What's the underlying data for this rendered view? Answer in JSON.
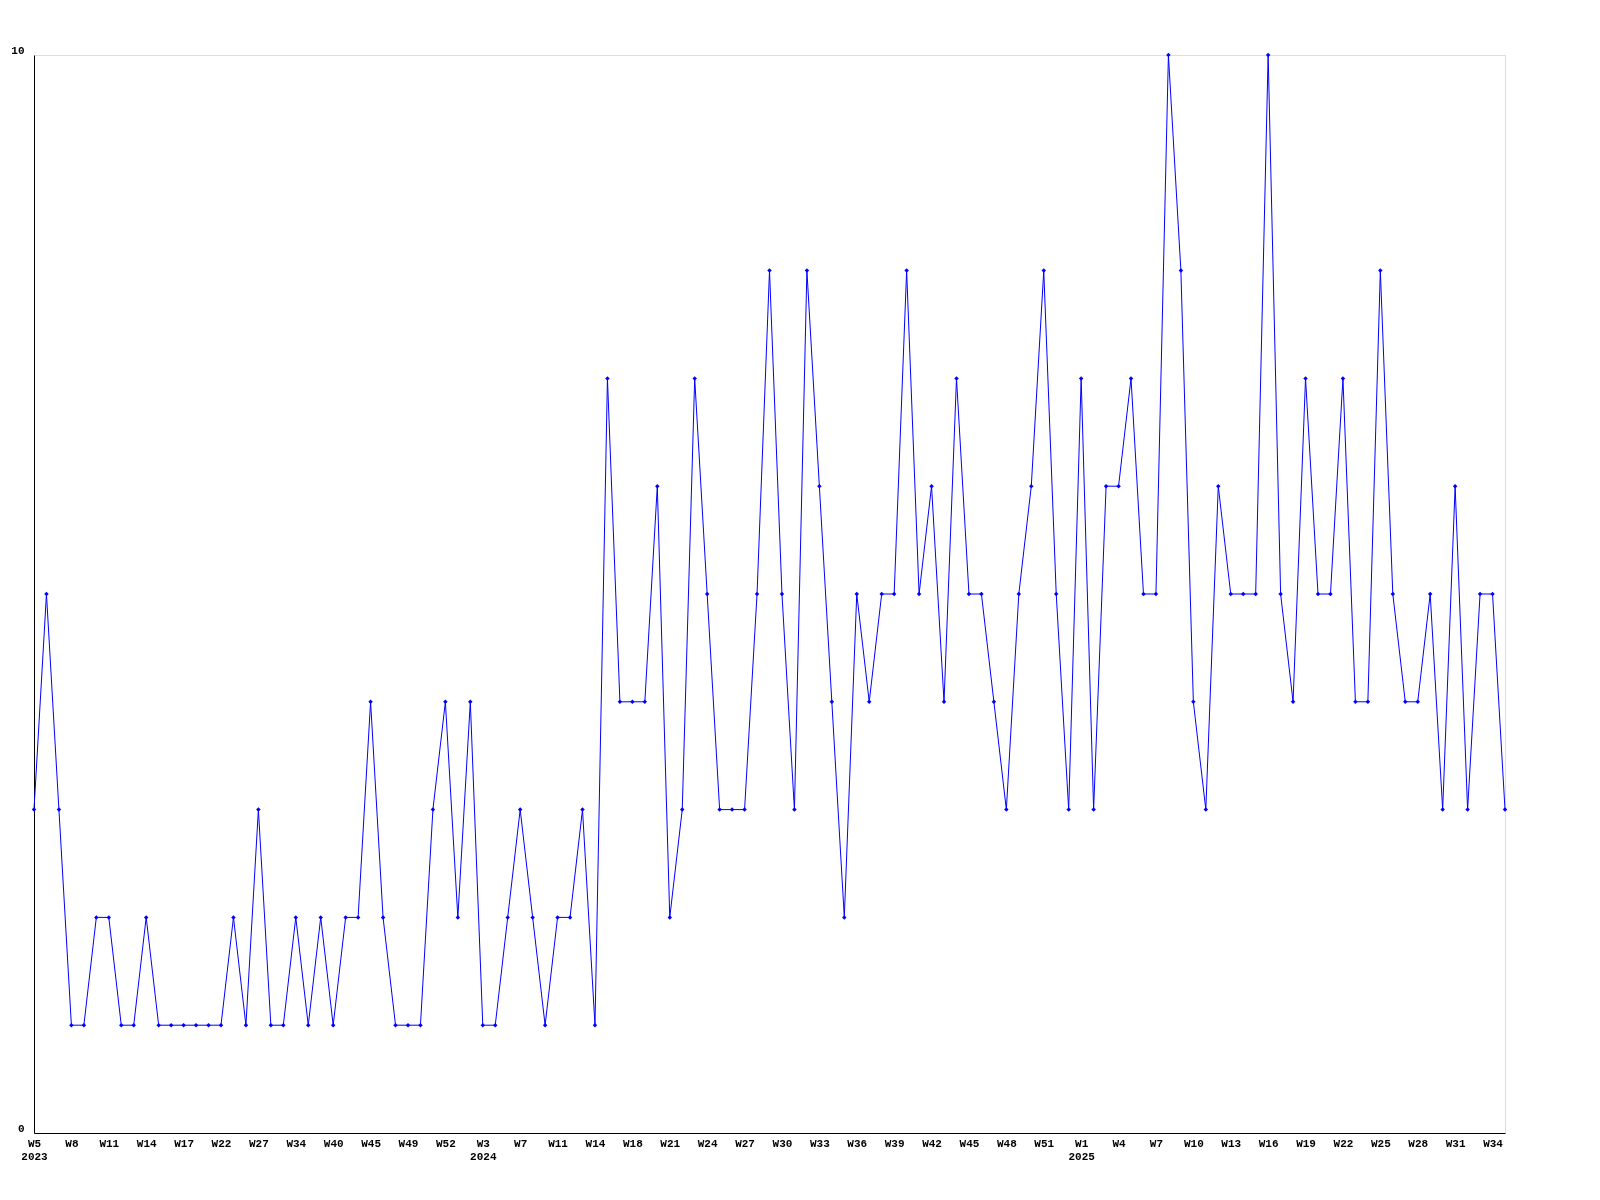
{
  "chart_data": {
    "type": "line",
    "categories": [
      "W5\n2023",
      null,
      null,
      "W8",
      null,
      null,
      "W11",
      null,
      null,
      "W14",
      null,
      null,
      "W17",
      null,
      null,
      "W22",
      null,
      null,
      "W27",
      null,
      null,
      "W34",
      null,
      null,
      "W40",
      null,
      null,
      "W45",
      null,
      null,
      "W49",
      null,
      null,
      "W52",
      null,
      null,
      "W3\n2024",
      null,
      null,
      "W7",
      null,
      null,
      "W11",
      null,
      null,
      "W14",
      null,
      null,
      "W18",
      null,
      null,
      "W21",
      null,
      null,
      "W24",
      null,
      null,
      "W27",
      null,
      null,
      "W30",
      null,
      null,
      "W33",
      null,
      null,
      "W36",
      null,
      null,
      "W39",
      null,
      null,
      "W42",
      null,
      null,
      "W45",
      null,
      null,
      "W48",
      null,
      null,
      "W51",
      null,
      null,
      "W1\n2025",
      null,
      null,
      "W4",
      null,
      null,
      "W7",
      null,
      null,
      "W10",
      null,
      null,
      "W13",
      null,
      null,
      "W16",
      null,
      null,
      "W19",
      null,
      null,
      "W22",
      null,
      null,
      "W25",
      null,
      null,
      "W28",
      null,
      null,
      "W31",
      null,
      null,
      "W34",
      null
    ],
    "series": [
      {
        "color": "#0000ff",
        "values": [
          3,
          5,
          3,
          1,
          1,
          2,
          2,
          1,
          1,
          2,
          1,
          1,
          1,
          1,
          1,
          1,
          2,
          1,
          3,
          1,
          1,
          2,
          1,
          2,
          1,
          2,
          2,
          4,
          2,
          1,
          1,
          1,
          3,
          4,
          2,
          4,
          1,
          1,
          2,
          3,
          2,
          1,
          2,
          2,
          3,
          1,
          7,
          4,
          4,
          4,
          6,
          2,
          3,
          7,
          5,
          3,
          3,
          3,
          5,
          8,
          5,
          3,
          8,
          6,
          4,
          2,
          5,
          4,
          5,
          5,
          8,
          5,
          6,
          4,
          7,
          5,
          5,
          4,
          3,
          5,
          6,
          8,
          5,
          3,
          7,
          3,
          6,
          6,
          7,
          5,
          5,
          10,
          8,
          4,
          3,
          6,
          5,
          5,
          5,
          10,
          5,
          4,
          7,
          5,
          5,
          7,
          4,
          4,
          8,
          5,
          4,
          4,
          5,
          3,
          6,
          3,
          5,
          5,
          3
        ]
      }
    ],
    "ylim": [
      0,
      10
    ],
    "yticks": [
      0,
      10
    ],
    "grid": false,
    "marker": "diamond",
    "line_style": "solid"
  }
}
